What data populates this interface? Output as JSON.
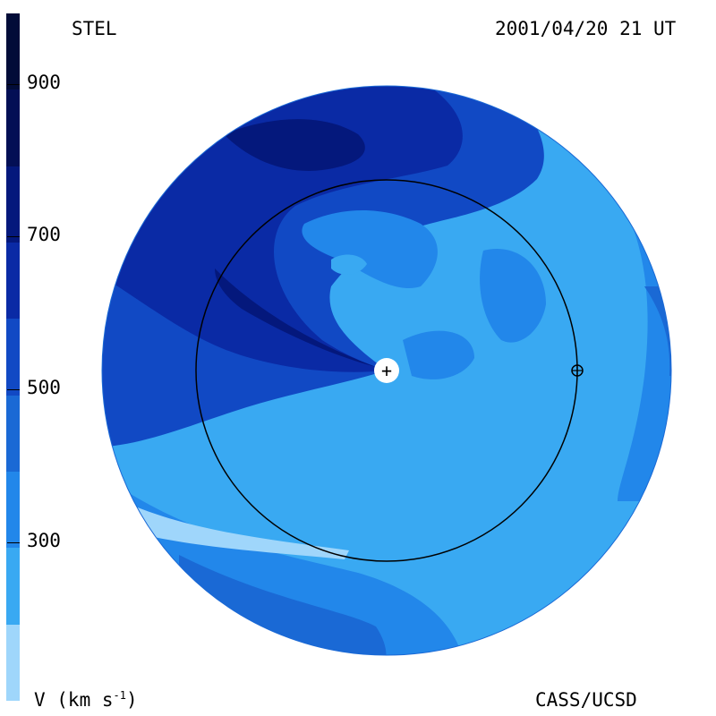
{
  "header": {
    "instrument": "STEL",
    "timestamp": "2001/04/20 21 UT"
  },
  "footer": {
    "units": "V (km s",
    "units_sup": "-1",
    "units_close": ")",
    "credit": "CASS/UCSD"
  },
  "colorbar": {
    "levels": [
      {
        "min": 100,
        "max": 200,
        "color": "#9fd6fb"
      },
      {
        "min": 200,
        "max": 300,
        "color": "#39a9f2"
      },
      {
        "min": 300,
        "max": 400,
        "color": "#2287ea"
      },
      {
        "min": 400,
        "max": 500,
        "color": "#1a69d5"
      },
      {
        "min": 500,
        "max": 600,
        "color": "#1149c4"
      },
      {
        "min": 600,
        "max": 700,
        "color": "#0a2aa5"
      },
      {
        "min": 700,
        "max": 800,
        "color": "#04187c"
      },
      {
        "min": 800,
        "max": 900,
        "color": "#030f55"
      },
      {
        "min": 900,
        "max": 1000,
        "color": "#020c38"
      }
    ],
    "ticks": [
      {
        "value": 300,
        "label": "300"
      },
      {
        "value": 500,
        "label": "500"
      },
      {
        "value": 700,
        "label": "700"
      },
      {
        "value": 900,
        "label": "900"
      }
    ]
  },
  "map": {
    "sun_symbol": "+",
    "earth_symbol": "⊕"
  }
}
